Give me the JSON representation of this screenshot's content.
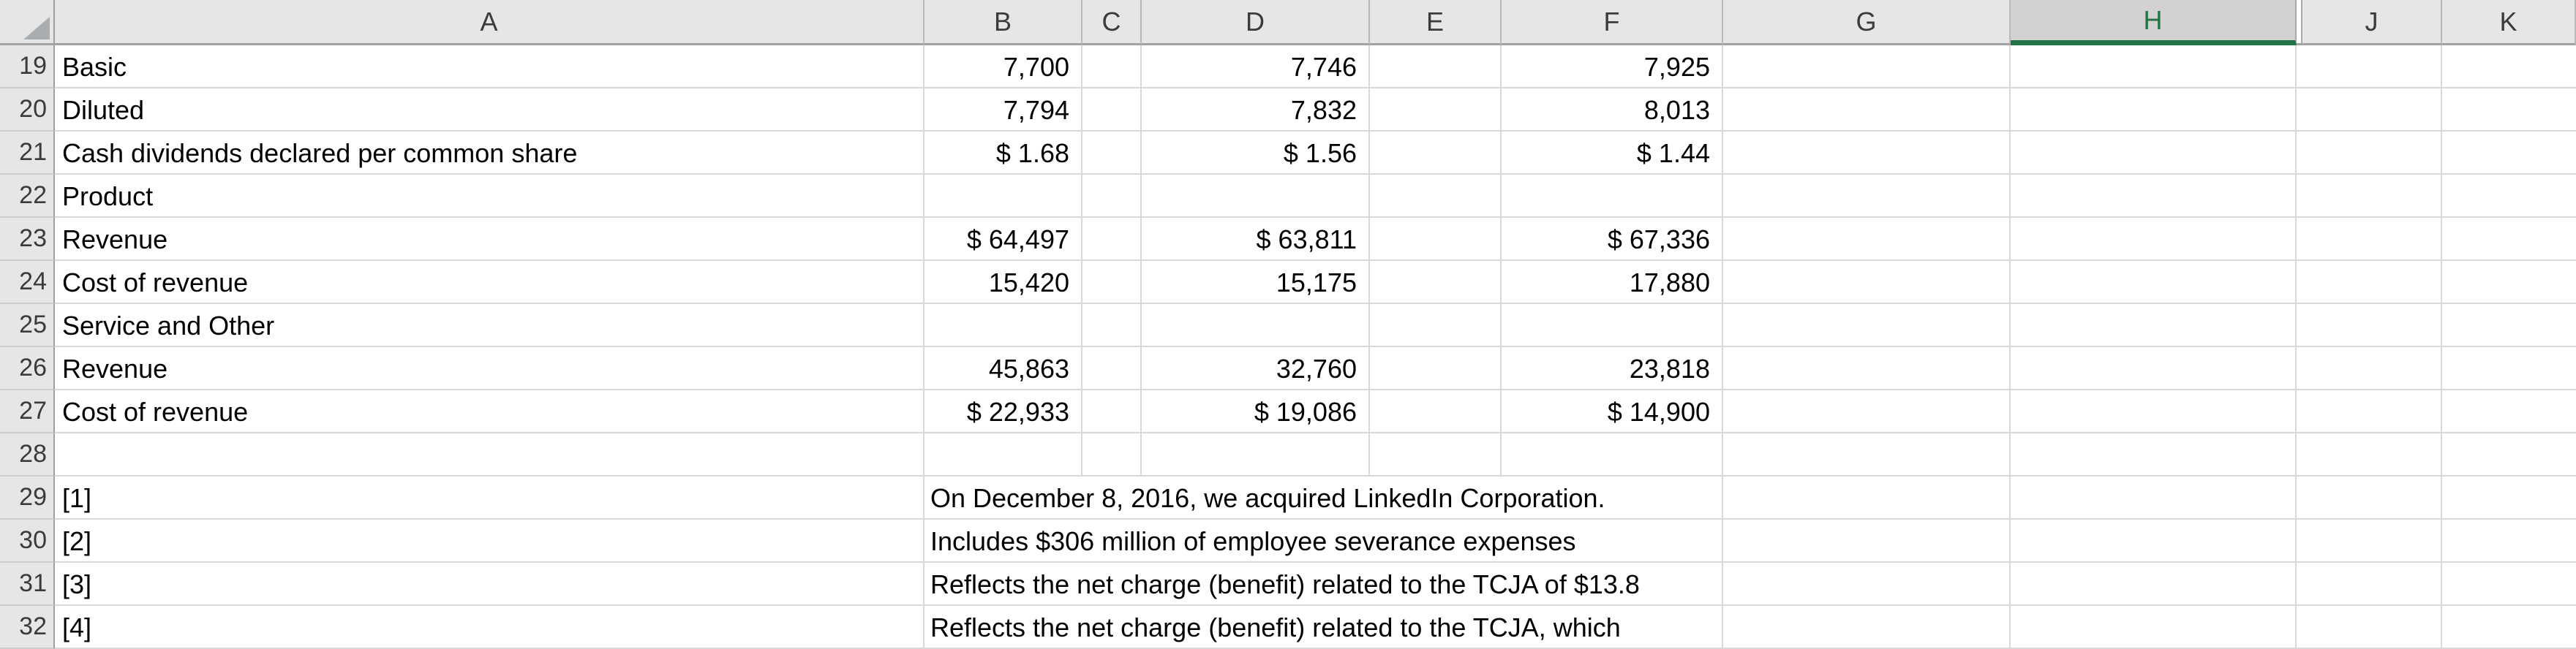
{
  "selected_column": "H",
  "hidden_column": "I",
  "columns": [
    "A",
    "B",
    "C",
    "D",
    "E",
    "F",
    "G",
    "H",
    "J",
    "K"
  ],
  "colors": {
    "accent_green": "#217346",
    "header_bg": "#e6e6e6",
    "selected_header_bg": "#d2d2d2",
    "gridline": "#d8d8d8",
    "header_border": "#a2a2a2",
    "header_separator": "#b9b9b9",
    "row_header_separator": "#cccccc",
    "strong_border": "#9f9f9f",
    "header_text": "#3b3b3b",
    "cell_text": "#000000",
    "triangle_gray": "#a9acb0"
  },
  "rows": [
    {
      "num": 19,
      "a": "Basic",
      "b": "7,700",
      "d": "7,746",
      "f": "7,925"
    },
    {
      "num": 20,
      "a": "Diluted",
      "b": "7,794",
      "d": "7,832",
      "f": "8,013"
    },
    {
      "num": 21,
      "a": "Cash dividends declared per common share",
      "b": "$ 1.68",
      "d": "$ 1.56",
      "f": "$ 1.44"
    },
    {
      "num": 22,
      "a": "Product"
    },
    {
      "num": 23,
      "a": "Revenue",
      "b": "$ 64,497",
      "d": "$ 63,811",
      "f": "$ 67,336"
    },
    {
      "num": 24,
      "a": "Cost of revenue",
      "b": "15,420",
      "d": "15,175",
      "f": "17,880"
    },
    {
      "num": 25,
      "a": "Service and Other"
    },
    {
      "num": 26,
      "a": "Revenue",
      "b": "45,863",
      "d": "32,760",
      "f": "23,818"
    },
    {
      "num": 27,
      "a": "Cost of revenue",
      "b": "$ 22,933",
      "d": "$ 19,086",
      "f": "$ 14,900"
    },
    {
      "num": 28,
      "a": ""
    },
    {
      "num": 29,
      "a": "[1]",
      "note": "On December 8, 2016, we acquired LinkedIn Corporation."
    },
    {
      "num": 30,
      "a": "[2]",
      "note": "Includes $306 million of employee severance expenses"
    },
    {
      "num": 31,
      "a": "[3]",
      "note": "Reflects the net charge (benefit) related to the TCJA of $13.8"
    },
    {
      "num": 32,
      "a": "[4]",
      "note": "Reflects the net charge (benefit) related to the TCJA, which"
    }
  ]
}
